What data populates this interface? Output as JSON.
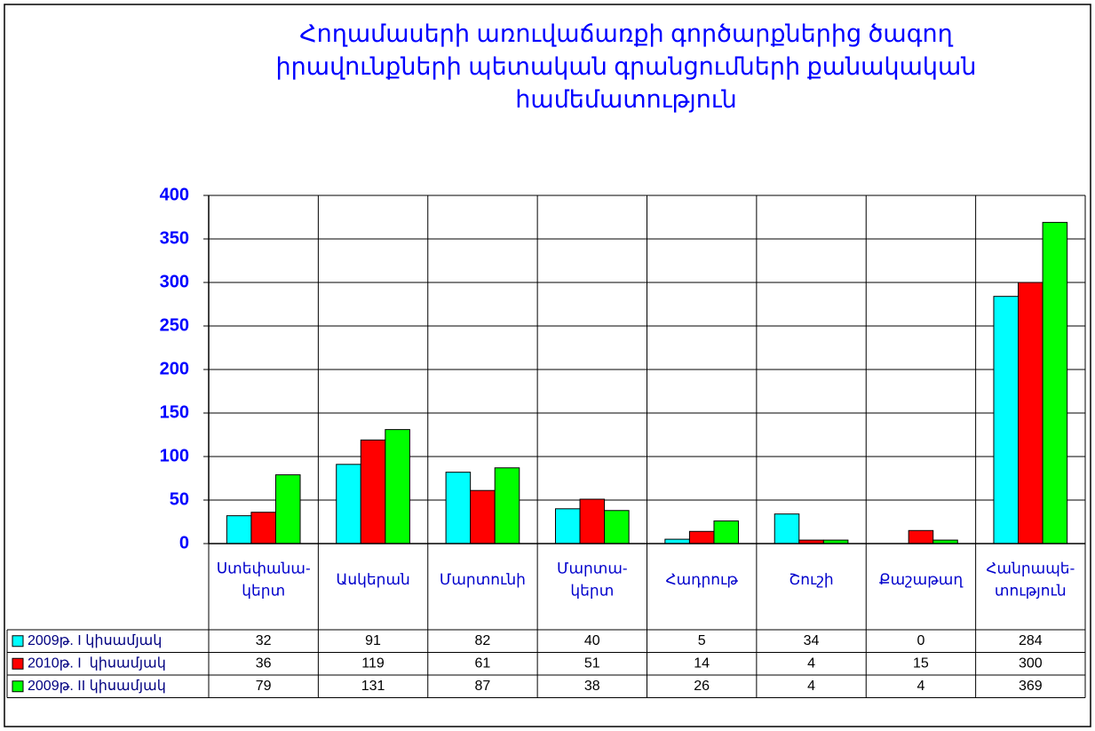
{
  "chart_data": {
    "type": "bar",
    "title": "Հողամասերի առուվաճառքի գործարքներից ծագող\nիրավունքների պետական գրանցումների քանակական\nհամեմատություն",
    "categories": [
      "Ստեփանա-\nկերտ",
      "Ասկերան",
      "Մարտունի",
      "Մարտա-\nկերտ",
      "Հադրութ",
      "Շուշի",
      "Քաշաթաղ",
      "Հանրապե-\nտություն"
    ],
    "series": [
      {
        "name": "2009թ. I կիսամյակ",
        "color": "#00ffff",
        "values": [
          32,
          91,
          82,
          40,
          5,
          34,
          0,
          284
        ]
      },
      {
        "name": "2010թ. I  կիսամյակ",
        "color": "#ff0000",
        "values": [
          36,
          119,
          61,
          51,
          14,
          4,
          15,
          300
        ]
      },
      {
        "name": "2009թ. II կիսամյակ",
        "color": "#00ff00",
        "values": [
          79,
          131,
          87,
          38,
          26,
          4,
          4,
          369
        ]
      }
    ],
    "ylim": [
      0,
      400
    ],
    "yticks": [
      0,
      50,
      100,
      150,
      200,
      250,
      300,
      350,
      400
    ],
    "grid": true
  }
}
